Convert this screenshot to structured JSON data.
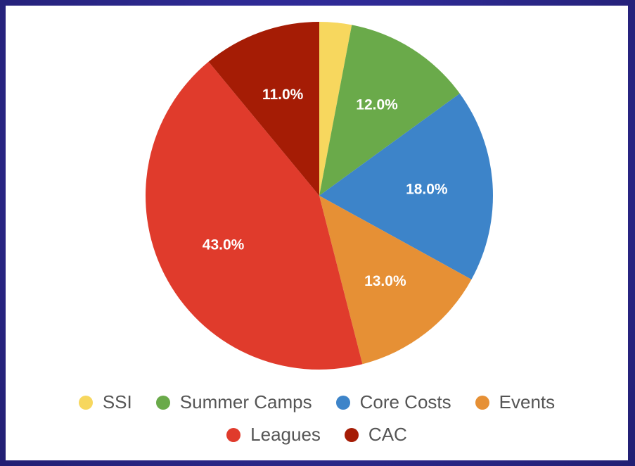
{
  "chart_data": {
    "type": "pie",
    "slices": [
      {
        "name": "SSI",
        "value": 3.0,
        "label": "",
        "color": "#f7d75e"
      },
      {
        "name": "Summer Camps",
        "value": 12.0,
        "label": "12.0%",
        "color": "#6aaa4a"
      },
      {
        "name": "Core Costs",
        "value": 18.0,
        "label": "18.0%",
        "color": "#3d84c9"
      },
      {
        "name": "Events",
        "value": 13.0,
        "label": "13.0%",
        "color": "#e69035"
      },
      {
        "name": "Leagues",
        "value": 43.0,
        "label": "43.0%",
        "color": "#e03b2c"
      },
      {
        "name": "CAC",
        "value": 11.0,
        "label": "11.0%",
        "color": "#a51c05"
      }
    ],
    "legend": {
      "placement": "bottom",
      "entries": [
        "SSI",
        "Summer Camps",
        "Core Costs",
        "Events",
        "Leagues",
        "CAC"
      ]
    }
  }
}
